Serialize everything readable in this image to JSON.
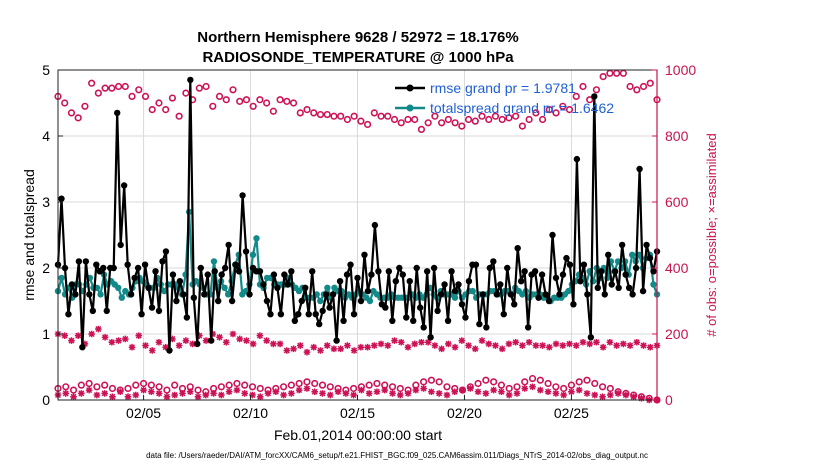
{
  "chart_data": {
    "type": "line",
    "title": "Northern Hemisphere 9628 / 52972 = 18.176%",
    "subtitle": "RADIOSONDE_TEMPERATURE @ 1000 hPa",
    "xlabel": "Feb.01,2014 00:00:00 start",
    "ylabel": "rmse and totalspread",
    "ylabel_right": "# of obs: o=possible; ×=assimilated",
    "x_tick_labels": [
      "02/05",
      "02/10",
      "02/15",
      "02/20",
      "02/25"
    ],
    "x_tick_days": [
      5,
      10,
      15,
      20,
      25
    ],
    "xlim": [
      1,
      29
    ],
    "ylim": [
      0,
      5
    ],
    "y_ticks": [
      "0",
      "1",
      "2",
      "3",
      "4",
      "5"
    ],
    "ylim_right": [
      0,
      1000
    ],
    "y_ticks_right": [
      "0",
      "200",
      "400",
      "600",
      "800",
      "1000"
    ],
    "footer": "data file: /Users/raeder/DAI/ATM_forcXX/CAM6_setup/f.e21.FHIST_BGC.f09_025.CAM6assim.011/Diags_NTrS_2014-02/obs_diag_output.nc",
    "colors": {
      "rmse": "#000000",
      "spread": "#138a8a",
      "obs": "#cc1155"
    },
    "series": [
      {
        "name": "rmse",
        "legend": "rmse grand pr = 1.9781",
        "values": [
          2.05,
          3.05,
          2.0,
          1.3,
          1.75,
          1.6,
          2.1,
          0.8,
          2.1,
          1.6,
          1.35,
          2.05,
          1.95,
          2.0,
          1.35,
          2.0,
          2.0,
          4.35,
          2.35,
          3.25,
          2.05,
          1.6,
          1.85,
          2.0,
          1.3,
          2.05,
          1.7,
          1.4,
          1.95,
          1.35,
          2.1,
          2.25,
          0.75,
          1.9,
          1.5,
          1.8,
          1.6,
          1.25,
          4.85,
          1.55,
          0.85,
          2.0,
          1.6,
          1.9,
          0.9,
          1.95,
          1.5,
          1.9,
          2.0,
          2.35,
          1.5,
          2.05,
          1.95,
          3.1,
          2.25,
          1.6,
          2.0,
          1.95,
          1.95,
          1.75,
          1.5,
          1.3,
          1.9,
          1.7,
          1.3,
          1.9,
          1.75,
          1.95,
          1.2,
          1.3,
          1.5,
          1.7,
          1.3,
          1.95,
          1.3,
          1.15,
          1.35,
          1.6,
          1.4,
          1.6,
          0.9,
          1.8,
          1.2,
          1.9,
          2.05,
          1.3,
          1.85,
          1.5,
          2.2,
          1.65,
          1.9,
          2.65,
          1.95,
          1.45,
          1.4,
          1.95,
          1.2,
          1.8,
          2.0,
          1.9,
          1.25,
          1.8,
          1.2,
          2.0,
          1.4,
          1.1,
          1.95,
          0.95,
          2.0,
          1.35,
          1.6,
          1.75,
          1.2,
          1.95,
          1.65,
          1.75,
          1.45,
          1.25,
          1.8,
          2.05,
          2.05,
          1.15,
          1.6,
          1.1,
          2.0,
          2.1,
          1.6,
          1.75,
          1.3,
          2.0,
          1.6,
          1.45,
          2.3,
          1.8,
          1.95,
          1.1,
          1.9,
          1.95,
          1.55,
          1.9,
          1.6,
          1.5,
          2.5,
          1.85,
          1.6,
          1.9,
          2.15,
          2.05,
          1.45,
          3.65,
          1.8,
          2.05,
          1.6,
          0.95,
          4.6,
          1.7,
          1.95,
          1.6,
          2.2,
          1.75,
          1.95,
          1.7,
          2.35,
          1.9,
          1.7,
          1.6,
          2.0,
          3.5,
          1.65,
          2.35,
          2.15,
          1.95,
          2.25
        ]
      },
      {
        "name": "totalspread",
        "legend": "totalspread grand pr = 1.6462",
        "values": [
          1.65,
          1.85,
          1.6,
          1.7,
          1.55,
          1.75,
          1.75,
          1.65,
          1.75,
          1.85,
          1.7,
          1.7,
          1.6,
          1.9,
          1.75,
          1.8,
          1.75,
          1.7,
          1.55,
          1.65,
          1.6,
          1.7,
          1.8,
          1.85,
          1.8,
          1.75,
          1.7,
          1.7,
          1.85,
          1.75,
          1.65,
          1.75,
          1.75,
          1.75,
          1.7,
          1.6,
          1.9,
          2.85,
          1.75,
          1.8,
          1.75,
          1.7,
          1.6,
          1.6,
          2.1,
          1.7,
          1.8,
          1.7,
          1.6,
          1.8,
          2.05,
          2.2,
          1.6,
          1.65,
          1.75,
          2.2,
          2.45,
          1.75,
          1.7,
          1.85,
          1.85,
          1.75,
          1.75,
          1.75,
          1.75,
          1.85,
          1.75,
          1.7,
          1.65,
          1.7,
          1.55,
          1.55,
          1.55,
          1.6,
          1.5,
          1.6,
          1.7,
          1.55,
          1.7,
          1.65,
          1.65,
          1.55,
          1.6,
          1.55,
          1.6,
          1.65,
          1.6,
          1.55,
          1.5,
          1.65,
          1.6,
          1.55,
          1.55,
          1.55,
          1.6,
          1.55,
          1.55,
          1.55,
          1.55,
          1.55,
          1.6,
          1.55,
          1.6,
          1.55,
          1.6,
          1.7,
          1.6,
          1.55,
          1.65,
          1.6,
          1.6,
          1.6,
          1.55,
          1.65,
          1.55,
          1.6,
          1.65,
          1.65,
          1.55,
          1.6,
          1.6,
          1.6,
          1.65,
          1.65,
          1.6,
          1.6,
          1.65,
          1.65,
          1.6,
          1.7,
          1.65,
          1.6,
          1.65,
          1.55,
          1.6,
          1.6,
          1.6,
          1.55,
          1.55,
          1.5,
          1.55,
          1.55,
          1.55,
          1.6,
          1.65,
          1.75,
          1.8,
          1.9,
          1.85,
          1.75,
          1.95,
          1.8,
          2.0,
          1.85,
          2.0,
          1.85,
          2.1,
          1.95,
          2.1,
          2.0,
          2.1,
          1.9,
          2.2,
          2.1,
          2.2,
          2.0,
          2.15,
          2.2,
          1.75,
          1.6
        ]
      },
      {
        "name": "obs possible (upper)",
        "axis": "right",
        "marker": "o",
        "values": [
          920,
          900,
          870,
          855,
          890,
          960,
          930,
          945,
          945,
          950,
          950,
          920,
          940,
          920,
          880,
          900,
          880,
          915,
          860,
          930,
          910,
          945,
          950,
          890,
          920,
          910,
          940,
          905,
          910,
          890,
          910,
          900,
          875,
          910,
          905,
          900,
          870,
          880,
          870,
          865,
          865,
          860,
          860,
          850,
          860,
          845,
          835,
          870,
          860,
          860,
          850,
          840,
          850,
          850,
          820,
          840,
          860,
          840,
          850,
          840,
          830,
          850,
          845,
          860,
          850,
          860,
          850,
          855,
          860,
          830,
          850,
          870,
          850,
          880,
          870,
          890,
          880,
          920,
          950,
          910,
          940,
          980,
          990,
          990,
          990,
          950,
          940,
          950,
          960,
          910
        ]
      },
      {
        "name": "obs assimilated (upper)",
        "axis": "right",
        "marker": "x",
        "values": [
          200,
          195,
          180,
          195,
          170,
          200,
          215,
          190,
          175,
          180,
          185,
          160,
          195,
          165,
          150,
          175,
          160,
          185,
          165,
          180,
          170,
          195,
          180,
          200,
          190,
          175,
          200,
          185,
          180,
          170,
          195,
          180,
          170,
          170,
          150,
          155,
          165,
          145,
          160,
          150,
          165,
          155,
          155,
          165,
          150,
          160,
          160,
          165,
          170,
          165,
          180,
          175,
          160,
          170,
          175,
          175,
          165,
          155,
          170,
          160,
          180,
          165,
          155,
          180,
          170,
          165,
          155,
          170,
          175,
          165,
          175,
          165,
          165,
          160,
          170,
          165,
          170,
          165,
          175,
          170,
          175,
          160,
          175,
          165,
          170,
          165,
          175,
          165,
          160,
          165
        ]
      },
      {
        "name": "obs possible (lower)",
        "axis": "right",
        "marker": "o",
        "values": [
          35,
          40,
          30,
          45,
          50,
          40,
          45,
          35,
          30,
          35,
          45,
          50,
          45,
          40,
          30,
          45,
          35,
          40,
          30,
          25,
          35,
          40,
          45,
          50,
          45,
          40,
          35,
          30,
          35,
          40,
          45,
          50,
          55,
          50,
          45,
          40,
          35,
          30,
          35,
          40,
          45,
          50,
          45,
          40,
          35,
          30,
          45,
          55,
          60,
          55,
          40,
          35,
          30,
          40,
          50,
          60,
          55,
          45,
          35,
          40,
          55,
          65,
          60,
          50,
          40,
          35,
          45,
          55,
          60,
          50,
          40,
          35,
          25,
          20,
          15,
          10,
          5,
          0
        ]
      },
      {
        "name": "obs assimilated (lower)",
        "axis": "right",
        "marker": "x",
        "values": [
          15,
          20,
          10,
          20,
          30,
          15,
          20,
          10,
          25,
          10,
          15,
          30,
          25,
          20,
          10,
          15,
          20,
          25,
          10,
          15,
          20,
          15,
          25,
          30,
          20,
          15,
          10,
          20,
          25,
          15,
          20,
          30,
          35,
          25,
          20,
          15,
          25,
          20,
          15,
          30,
          20,
          25,
          30,
          20,
          15,
          20,
          30,
          35,
          25,
          20,
          15,
          25,
          30,
          35,
          25,
          20,
          30,
          25,
          15,
          20,
          35,
          40,
          30,
          25,
          20,
          15,
          25,
          30,
          20,
          15,
          10,
          15,
          20,
          15,
          10,
          5,
          0,
          0
        ]
      }
    ]
  }
}
